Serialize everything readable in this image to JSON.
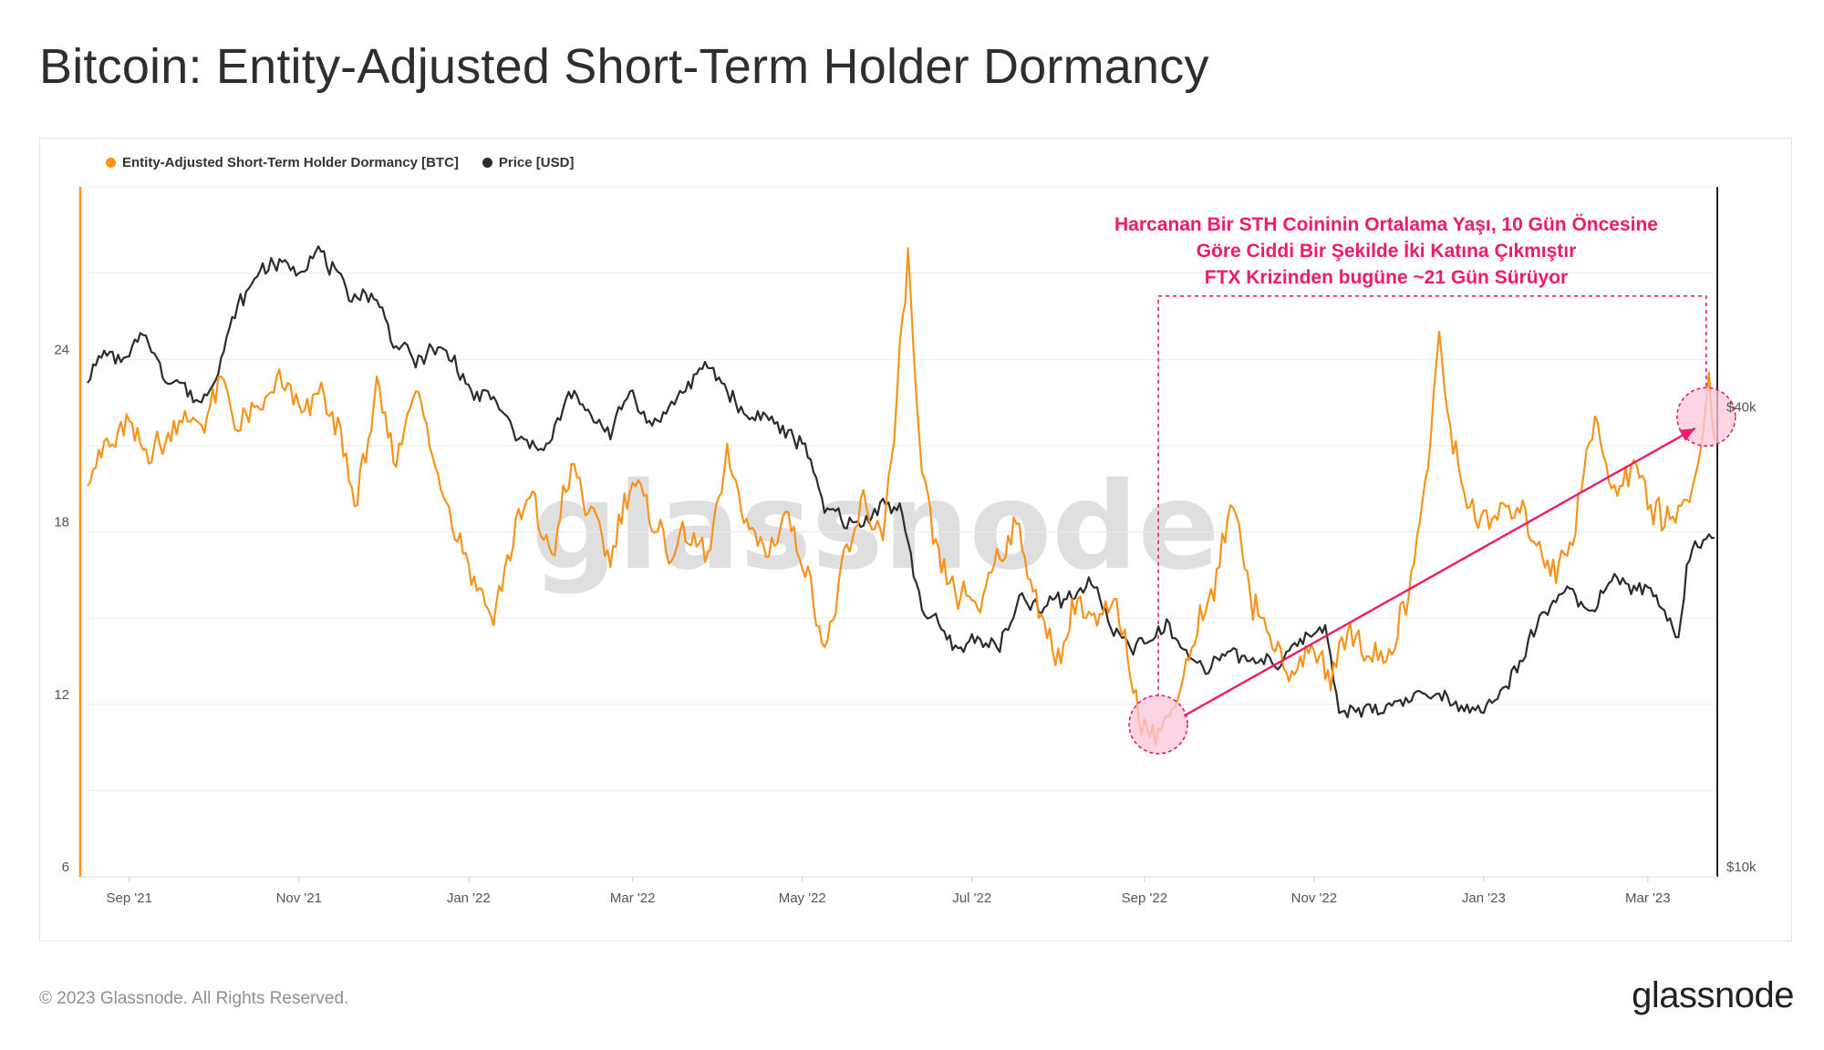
{
  "title": "Bitcoin: Entity-Adjusted Short-Term Holder Dormancy",
  "copyright": "© 2023 Glassnode. All Rights Reserved.",
  "footer_logo": "glassnode",
  "watermark": "glassnode",
  "colors": {
    "dormancy": "#f7931a",
    "price": "#2c2c2c",
    "annotation": "#ee1a6c",
    "highlight_fill": "#f9c7db",
    "grid": "#ececec"
  },
  "legend": [
    {
      "label": "Entity-Adjusted Short-Term Holder Dormancy [BTC]",
      "color": "#f7931a"
    },
    {
      "label": "Price [USD]",
      "color": "#2c2c2c"
    }
  ],
  "annotation": {
    "lines": [
      "Harcanan Bir STH Coininin Ortalama Yaşı, 10 Gün Öncesine",
      "Göre Ciddi Bir Şekilde İki Katına Çıkmıştır",
      "FTX Krizinden bugüne ~21 Gün Sürüyor"
    ]
  },
  "chart_data": {
    "type": "line",
    "x_range": [
      "2021-08-17",
      "2023-03-25"
    ],
    "x_ticks": [
      "Sep '21",
      "Nov '21",
      "Jan '22",
      "Mar '22",
      "May '22",
      "Jul '22",
      "Sep '22",
      "Nov '22",
      "Jan '23",
      "Mar '23"
    ],
    "x_tick_dates": [
      "2021-09-01",
      "2021-11-01",
      "2022-01-01",
      "2022-03-01",
      "2022-05-01",
      "2022-07-01",
      "2022-09-01",
      "2022-11-01",
      "2023-01-01",
      "2023-03-01"
    ],
    "y_left": {
      "scale": "linear",
      "range": [
        6,
        30
      ],
      "ticks": [
        6,
        12,
        18,
        24
      ]
    },
    "y_right": {
      "scale": "log",
      "range": [
        10000,
        80000
      ],
      "ticks": [
        10000,
        40000
      ],
      "tick_labels": [
        "$10k",
        "$40k"
      ]
    },
    "grid": true,
    "legend_position": "top-left",
    "series": [
      {
        "name": "Entity-Adjusted Short-Term Holder Dormancy [BTC]",
        "axis": "left",
        "points": [
          [
            "2021-08-17",
            20.3
          ],
          [
            "2021-08-24",
            21.0
          ],
          [
            "2021-08-31",
            21.6
          ],
          [
            "2021-09-06",
            20.6
          ],
          [
            "2021-09-13",
            21.0
          ],
          [
            "2021-09-20",
            22.1
          ],
          [
            "2021-09-27",
            21.5
          ],
          [
            "2021-10-04",
            23.1
          ],
          [
            "2021-10-11",
            21.6
          ],
          [
            "2021-10-18",
            22.0
          ],
          [
            "2021-10-25",
            23.3
          ],
          [
            "2021-11-01",
            22.0
          ],
          [
            "2021-11-08",
            23.0
          ],
          [
            "2021-11-15",
            21.5
          ],
          [
            "2021-11-22",
            19.0
          ],
          [
            "2021-11-29",
            22.8
          ],
          [
            "2021-12-06",
            20.5
          ],
          [
            "2021-12-13",
            23.3
          ],
          [
            "2021-12-20",
            20.5
          ],
          [
            "2021-12-27",
            18.0
          ],
          [
            "2022-01-03",
            16.2
          ],
          [
            "2022-01-10",
            15.2
          ],
          [
            "2022-01-17",
            17.8
          ],
          [
            "2022-01-24",
            19.0
          ],
          [
            "2022-01-31",
            17.2
          ],
          [
            "2022-02-07",
            20.3
          ],
          [
            "2022-02-14",
            18.6
          ],
          [
            "2022-02-21",
            17.2
          ],
          [
            "2022-02-28",
            19.8
          ],
          [
            "2022-03-07",
            18.6
          ],
          [
            "2022-03-14",
            17.3
          ],
          [
            "2022-03-21",
            18.0
          ],
          [
            "2022-03-28",
            17.2
          ],
          [
            "2022-04-04",
            20.5
          ],
          [
            "2022-04-11",
            18.5
          ],
          [
            "2022-04-18",
            17.3
          ],
          [
            "2022-04-25",
            18.5
          ],
          [
            "2022-05-02",
            17.0
          ],
          [
            "2022-05-09",
            14.0
          ],
          [
            "2022-05-16",
            16.8
          ],
          [
            "2022-05-23",
            19.0
          ],
          [
            "2022-05-30",
            18.0
          ],
          [
            "2022-06-03",
            21.5
          ],
          [
            "2022-06-08",
            27.3
          ],
          [
            "2022-06-13",
            19.5
          ],
          [
            "2022-06-20",
            16.7
          ],
          [
            "2022-06-27",
            15.8
          ],
          [
            "2022-07-04",
            15.3
          ],
          [
            "2022-07-11",
            17.6
          ],
          [
            "2022-07-18",
            18.2
          ],
          [
            "2022-07-25",
            15.0
          ],
          [
            "2022-08-01",
            13.7
          ],
          [
            "2022-08-08",
            15.6
          ],
          [
            "2022-08-15",
            14.8
          ],
          [
            "2022-08-22",
            15.5
          ],
          [
            "2022-08-29",
            12.0
          ],
          [
            "2022-09-05",
            10.9
          ],
          [
            "2022-09-12",
            12.2
          ],
          [
            "2022-09-19",
            14.5
          ],
          [
            "2022-09-26",
            15.8
          ],
          [
            "2022-10-03",
            19.2
          ],
          [
            "2022-10-10",
            15.5
          ],
          [
            "2022-10-17",
            14.0
          ],
          [
            "2022-10-24",
            13.0
          ],
          [
            "2022-10-31",
            14.0
          ],
          [
            "2022-11-07",
            12.9
          ],
          [
            "2022-11-14",
            14.9
          ],
          [
            "2022-11-21",
            13.5
          ],
          [
            "2022-11-28",
            13.9
          ],
          [
            "2022-12-05",
            15.6
          ],
          [
            "2022-12-12",
            20.5
          ],
          [
            "2022-12-16",
            24.5
          ],
          [
            "2022-12-23",
            19.8
          ],
          [
            "2022-12-30",
            18.2
          ],
          [
            "2023-01-06",
            18.5
          ],
          [
            "2023-01-13",
            18.9
          ],
          [
            "2023-01-20",
            17.5
          ],
          [
            "2023-01-27",
            16.4
          ],
          [
            "2023-02-03",
            18.5
          ],
          [
            "2023-02-10",
            21.8
          ],
          [
            "2023-02-17",
            19.2
          ],
          [
            "2023-02-24",
            20.6
          ],
          [
            "2023-03-03",
            18.8
          ],
          [
            "2023-03-10",
            18.5
          ],
          [
            "2023-03-17",
            19.6
          ],
          [
            "2023-03-20",
            21.2
          ],
          [
            "2023-03-23",
            22.9
          ],
          [
            "2023-03-25",
            21.2
          ]
        ]
      },
      {
        "name": "Price [USD]",
        "axis": "right",
        "points": [
          [
            "2021-08-17",
            44700
          ],
          [
            "2021-08-24",
            48500
          ],
          [
            "2021-08-31",
            47200
          ],
          [
            "2021-09-06",
            52000
          ],
          [
            "2021-09-13",
            45200
          ],
          [
            "2021-09-20",
            44000
          ],
          [
            "2021-09-27",
            41500
          ],
          [
            "2021-10-04",
            47500
          ],
          [
            "2021-10-11",
            57000
          ],
          [
            "2021-10-18",
            62000
          ],
          [
            "2021-10-25",
            63500
          ],
          [
            "2021-11-01",
            61500
          ],
          [
            "2021-11-08",
            67000
          ],
          [
            "2021-11-15",
            60000
          ],
          [
            "2021-11-22",
            57500
          ],
          [
            "2021-11-29",
            57000
          ],
          [
            "2021-12-06",
            49500
          ],
          [
            "2021-12-13",
            47500
          ],
          [
            "2021-12-20",
            49000
          ],
          [
            "2021-12-27",
            47500
          ],
          [
            "2022-01-03",
            42000
          ],
          [
            "2022-01-10",
            42500
          ],
          [
            "2022-01-17",
            38000
          ],
          [
            "2022-01-24",
            36500
          ],
          [
            "2022-01-31",
            37500
          ],
          [
            "2022-02-07",
            43000
          ],
          [
            "2022-02-14",
            40000
          ],
          [
            "2022-02-21",
            38000
          ],
          [
            "2022-02-28",
            44000
          ],
          [
            "2022-03-07",
            39500
          ],
          [
            "2022-03-14",
            41000
          ],
          [
            "2022-03-21",
            44000
          ],
          [
            "2022-03-28",
            46500
          ],
          [
            "2022-04-04",
            43000
          ],
          [
            "2022-04-11",
            40000
          ],
          [
            "2022-04-18",
            40500
          ],
          [
            "2022-04-25",
            38000
          ],
          [
            "2022-05-02",
            37000
          ],
          [
            "2022-05-09",
            30000
          ],
          [
            "2022-05-16",
            29500
          ],
          [
            "2022-05-23",
            29000
          ],
          [
            "2022-05-30",
            31000
          ],
          [
            "2022-06-06",
            29800
          ],
          [
            "2022-06-13",
            22500
          ],
          [
            "2022-06-20",
            21000
          ],
          [
            "2022-06-27",
            20000
          ],
          [
            "2022-07-04",
            20500
          ],
          [
            "2022-07-11",
            19800
          ],
          [
            "2022-07-18",
            23000
          ],
          [
            "2022-07-25",
            22500
          ],
          [
            "2022-08-01",
            23000
          ],
          [
            "2022-08-08",
            23500
          ],
          [
            "2022-08-15",
            24300
          ],
          [
            "2022-08-19",
            21300
          ],
          [
            "2022-08-26",
            20100
          ],
          [
            "2022-09-02",
            20000
          ],
          [
            "2022-09-09",
            21500
          ],
          [
            "2022-09-16",
            19500
          ],
          [
            "2022-09-23",
            18900
          ],
          [
            "2022-09-30",
            19400
          ],
          [
            "2022-10-07",
            19500
          ],
          [
            "2022-10-14",
            19200
          ],
          [
            "2022-10-21",
            19100
          ],
          [
            "2022-10-28",
            20600
          ],
          [
            "2022-11-05",
            21200
          ],
          [
            "2022-11-08",
            18500
          ],
          [
            "2022-11-10",
            16200
          ],
          [
            "2022-11-17",
            16700
          ],
          [
            "2022-11-24",
            16500
          ],
          [
            "2022-12-01",
            17000
          ],
          [
            "2022-12-08",
            17200
          ],
          [
            "2022-12-15",
            17400
          ],
          [
            "2022-12-22",
            16800
          ],
          [
            "2022-12-29",
            16600
          ],
          [
            "2023-01-05",
            16850
          ],
          [
            "2023-01-12",
            18500
          ],
          [
            "2023-01-19",
            21000
          ],
          [
            "2023-01-26",
            23000
          ],
          [
            "2023-02-02",
            23500
          ],
          [
            "2023-02-09",
            22000
          ],
          [
            "2023-02-16",
            24500
          ],
          [
            "2023-02-23",
            24000
          ],
          [
            "2023-03-02",
            23400
          ],
          [
            "2023-03-09",
            21700
          ],
          [
            "2023-03-12",
            20500
          ],
          [
            "2023-03-15",
            24800
          ],
          [
            "2023-03-18",
            27400
          ],
          [
            "2023-03-25",
            27800
          ]
        ]
      }
    ],
    "annotations": [
      {
        "type": "circle",
        "label": "",
        "date": "2022-09-06",
        "value": 11.3
      },
      {
        "type": "circle",
        "label": "",
        "date": "2023-03-22",
        "value": 22.0
      },
      {
        "type": "arrow",
        "label": "",
        "from": [
          "2022-09-12",
          11.6
        ],
        "to": [
          "2023-03-18",
          21.6
        ]
      },
      {
        "type": "dashed-box",
        "label": "",
        "from_date": "2022-09-06",
        "to_date": "2023-03-22",
        "top_value": 26.2
      }
    ]
  }
}
